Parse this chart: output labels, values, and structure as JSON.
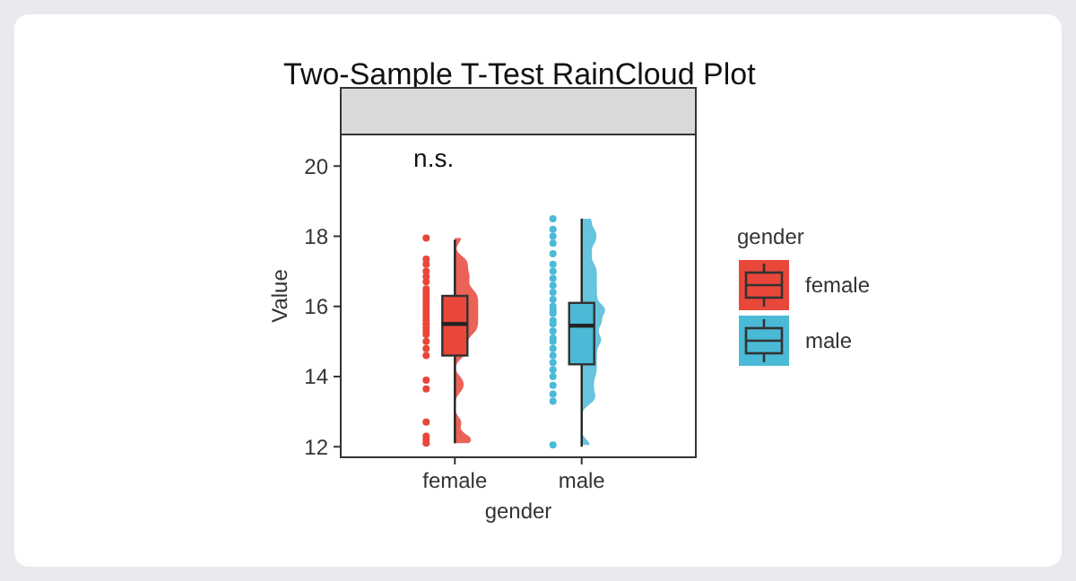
{
  "chart_data": {
    "type": "box",
    "title": "Two-Sample T-Test RainCloud Plot",
    "xlabel": "gender",
    "ylabel": "Value",
    "legend_title": "gender",
    "legend": "right",
    "grid": false,
    "categories": [
      "female",
      "male"
    ],
    "colors": [
      "#e8473a",
      "#4bbad6"
    ],
    "boxes": [
      {
        "low": 12.1,
        "q1": 14.6,
        "median": 15.5,
        "q3": 16.3,
        "high": 17.9
      },
      {
        "low": 12.0,
        "q1": 14.35,
        "median": 15.45,
        "q3": 16.1,
        "high": 18.5
      }
    ],
    "ylim": [
      11.7,
      20.9
    ],
    "yticks": [
      12,
      14,
      16,
      18,
      20
    ],
    "annotations": [
      "n.s."
    ],
    "series": [
      {
        "type": "scatter",
        "name": "female",
        "color": "#e8473a",
        "x": [
          "female",
          "female",
          "female",
          "female",
          "female",
          "female",
          "female",
          "female",
          "female",
          "female",
          "female",
          "female",
          "female",
          "female",
          "female",
          "female",
          "female",
          "female",
          "female",
          "female",
          "female",
          "female",
          "female",
          "female",
          "female",
          "female",
          "female",
          "female",
          "female"
        ],
        "values": [
          17.95,
          17.35,
          17.2,
          17.0,
          16.85,
          16.7,
          16.5,
          16.4,
          16.3,
          16.2,
          16.1,
          16.0,
          15.9,
          15.8,
          15.7,
          15.6,
          15.5,
          15.4,
          15.3,
          15.2,
          15.0,
          14.8,
          14.6,
          13.9,
          13.65,
          12.7,
          12.3,
          12.2,
          12.1
        ]
      },
      {
        "type": "scatter",
        "name": "male",
        "color": "#4bbad6",
        "x": [
          "male",
          "male",
          "male",
          "male",
          "male",
          "male",
          "male",
          "male",
          "male",
          "male",
          "male",
          "male",
          "male",
          "male",
          "male",
          "male",
          "male",
          "male",
          "male",
          "male",
          "male",
          "male",
          "male",
          "male",
          "male",
          "male",
          "male",
          "male"
        ],
        "values": [
          18.5,
          18.2,
          18.0,
          17.8,
          17.5,
          17.2,
          17.0,
          16.8,
          16.6,
          16.4,
          16.2,
          16.0,
          15.9,
          15.8,
          15.6,
          15.5,
          15.3,
          15.1,
          15.0,
          14.8,
          14.6,
          14.4,
          14.2,
          14.0,
          13.75,
          13.5,
          13.3,
          12.05
        ]
      }
    ]
  }
}
